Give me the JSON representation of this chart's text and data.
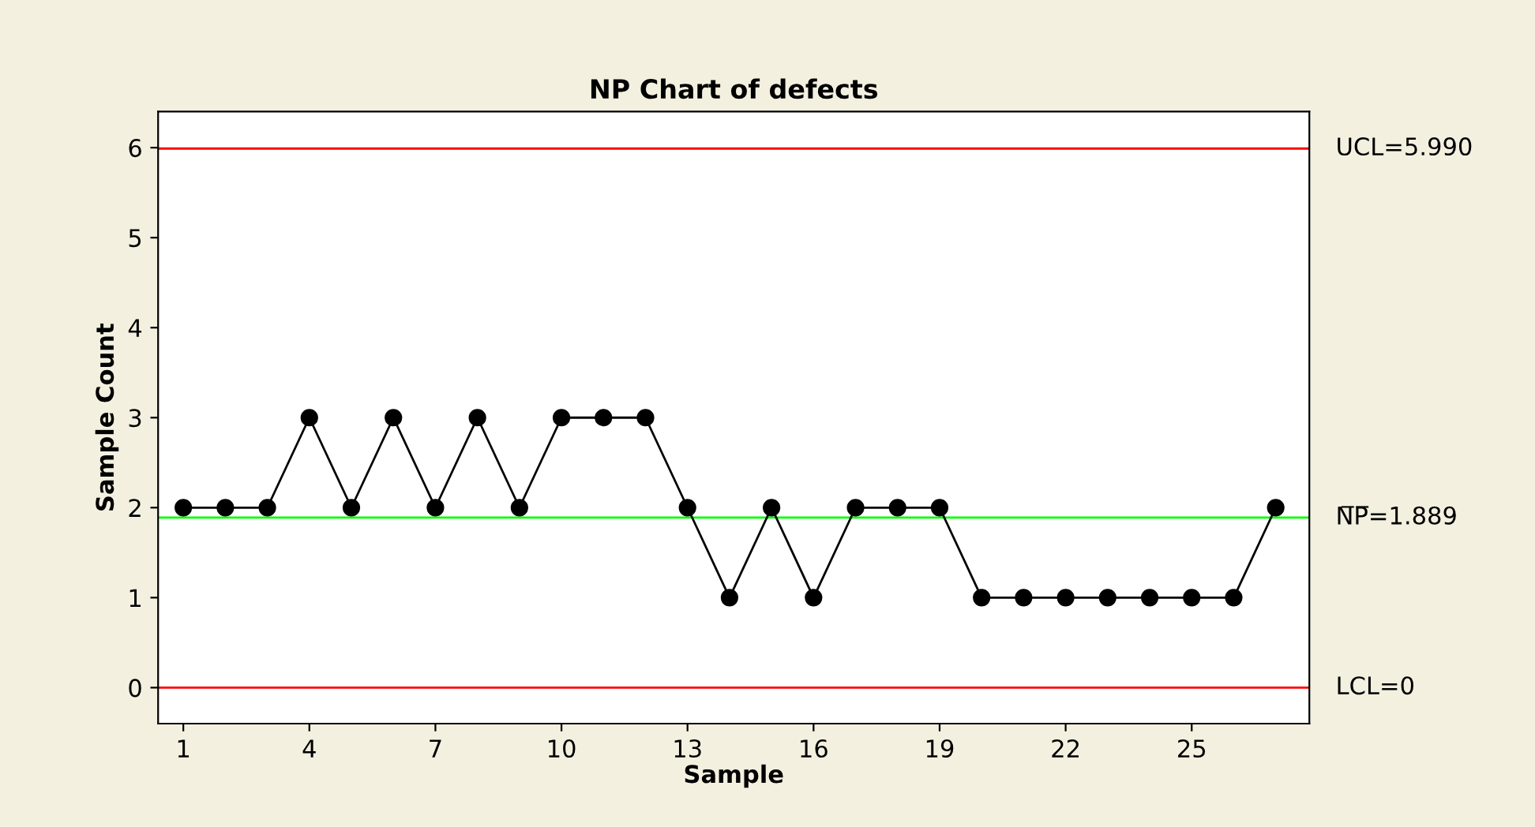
{
  "chart_data": {
    "type": "line",
    "title": "NP Chart of defects",
    "xlabel": "Sample",
    "ylabel": "Sample Count",
    "x": [
      1,
      2,
      3,
      4,
      5,
      6,
      7,
      8,
      9,
      10,
      11,
      12,
      13,
      14,
      15,
      16,
      17,
      18,
      19,
      20,
      21,
      22,
      23,
      24,
      25,
      26,
      27
    ],
    "series": [
      {
        "color": "#000000",
        "values": [
          2,
          2,
          2,
          3,
          2,
          3,
          2,
          3,
          2,
          3,
          3,
          3,
          2,
          1,
          2,
          1,
          2,
          2,
          2,
          1,
          1,
          1,
          1,
          1,
          1,
          1,
          2
        ]
      }
    ],
    "xlim": [
      0.4,
      27.8
    ],
    "xticks": [
      1,
      4,
      7,
      10,
      13,
      16,
      19,
      22,
      25
    ],
    "ylim": [
      -0.4,
      6.4
    ],
    "yticks": [
      0,
      1,
      2,
      3,
      4,
      5,
      6
    ],
    "ref_lines": [
      {
        "axis": "y",
        "value": 5.99,
        "label": "UCL=5.990",
        "color": "#ff0000"
      },
      {
        "axis": "y",
        "value": 1.889,
        "label": "N̅P̅=1.889",
        "color": "#00ff00"
      },
      {
        "axis": "y",
        "value": 0,
        "label": "LCL=0",
        "color": "#ff0000"
      }
    ],
    "marker": "circle",
    "line_style": "solid",
    "grid": false,
    "legend": false
  }
}
